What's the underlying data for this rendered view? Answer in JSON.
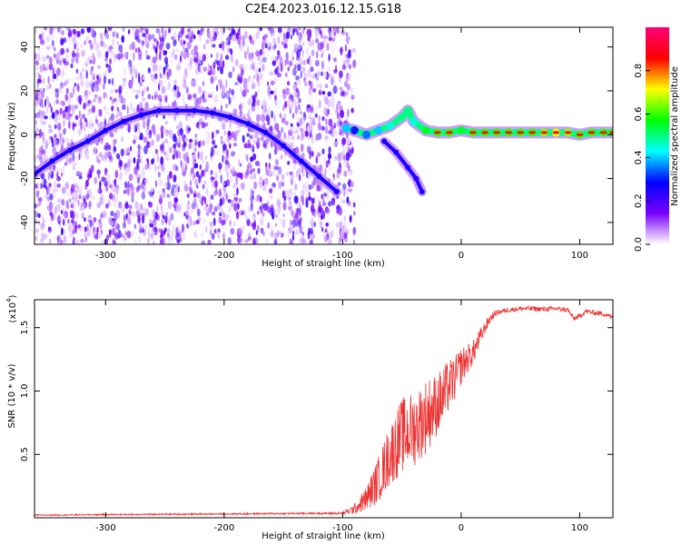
{
  "title": "C2E4.2023.016.12.15.G18",
  "chart_data": [
    {
      "type": "heatmap",
      "xlabel": "Height of straight line (km)",
      "ylabel": "Frequency (Hz)",
      "xlim": [
        -360,
        128
      ],
      "ylim": [
        -50,
        49
      ],
      "xticks": [
        -300,
        -200,
        -100,
        0,
        100
      ],
      "xtick_labels": [
        "-300",
        "-200",
        "-100",
        "0",
        "100"
      ],
      "yticks": [
        -40,
        -20,
        0,
        20,
        40
      ],
      "ytick_labels": [
        "-40",
        "-20",
        "0",
        "20",
        "40"
      ],
      "colorbar": {
        "label": "Normalized spectral amplitude",
        "range": [
          0,
          1
        ],
        "ticks": [
          0.0,
          0.2,
          0.4,
          0.6,
          0.8
        ],
        "tick_labels": [
          "0.0",
          "0.2",
          "0.4",
          "0.6",
          "0.8"
        ],
        "colors": [
          "#ffffff",
          "#7a00ff",
          "#0000ff",
          "#00ffff",
          "#00ff00",
          "#ffff00",
          "#ff0000",
          "#ff0077"
        ]
      },
      "noise_region_x": [
        -360,
        -90
      ],
      "arc_trace": {
        "x": [
          -360,
          -345,
          -330,
          -315,
          -300,
          -285,
          -270,
          -255,
          -240,
          -225,
          -210,
          -195,
          -180,
          -165,
          -150,
          -135,
          -120,
          -105
        ],
        "y": [
          -18,
          -12,
          -7,
          -3,
          2,
          6,
          9,
          11,
          11,
          11,
          10,
          8,
          5,
          1,
          -5,
          -12,
          -19,
          -26
        ]
      },
      "main_trace": {
        "x": [
          -97,
          -90,
          -80,
          -70,
          -60,
          -50,
          -45,
          -40,
          -30,
          -20,
          -10,
          0,
          10,
          20,
          30,
          40,
          50,
          60,
          70,
          80,
          90,
          100,
          110,
          120,
          128
        ],
        "y": [
          3,
          2,
          0,
          2,
          4,
          8,
          11,
          6,
          2,
          1,
          1,
          2,
          1,
          1,
          1,
          1,
          1,
          1,
          1,
          1,
          1,
          0,
          1,
          1,
          1
        ],
        "amplitude": [
          0.4,
          0.3,
          0.35,
          0.4,
          0.45,
          0.5,
          0.5,
          0.45,
          0.55,
          0.6,
          0.6,
          0.55,
          0.6,
          0.6,
          0.6,
          0.6,
          0.6,
          0.6,
          0.65,
          0.7,
          0.65,
          0.6,
          0.6,
          0.6,
          0.6
        ]
      },
      "branch_trace": {
        "x": [
          -65,
          -55,
          -45,
          -38,
          -33
        ],
        "y": [
          -3,
          -8,
          -15,
          -20,
          -26
        ]
      }
    },
    {
      "type": "line",
      "xlabel": "Height of straight line (km)",
      "ylabel": "SNR (10 * v/v)",
      "y_multiplier": "(x10",
      "y_multiplier_exp": "4",
      "y_multiplier_close": ")",
      "xlim": [
        -360,
        128
      ],
      "ylim": [
        0,
        17200
      ],
      "xticks": [
        -300,
        -200,
        -100,
        0,
        100
      ],
      "xtick_labels": [
        "-300",
        "-200",
        "-100",
        "0",
        "100"
      ],
      "yticks": [
        5000,
        10000,
        15000
      ],
      "ytick_labels": [
        "0.5",
        "1.0",
        "1.5"
      ],
      "series": [
        {
          "color": "#ee3333",
          "x": [
            -360,
            -300,
            -200,
            -120,
            -100,
            -90,
            -80,
            -70,
            -60,
            -50,
            -40,
            -30,
            -20,
            -15,
            -10,
            -5,
            0,
            5,
            10,
            15,
            20,
            25,
            30,
            40,
            50,
            60,
            70,
            80,
            90,
            95,
            100,
            105,
            110,
            120,
            128
          ],
          "y": [
            200,
            250,
            300,
            350,
            350,
            700,
            1500,
            3000,
            5000,
            6500,
            7000,
            8000,
            9000,
            9500,
            10500,
            11000,
            12000,
            12500,
            13000,
            14000,
            15000,
            15800,
            16200,
            16400,
            16500,
            16500,
            16450,
            16500,
            16400,
            15700,
            15900,
            16300,
            16200,
            16100,
            15800
          ],
          "noise": [
            50,
            60,
            60,
            80,
            100,
            400,
            1000,
            1800,
            2500,
            3000,
            3000,
            3000,
            2500,
            2500,
            2000,
            1800,
            1500,
            1200,
            1000,
            800,
            500,
            350,
            200,
            200,
            200,
            200,
            200,
            200,
            200,
            200,
            200,
            200,
            200,
            200,
            200
          ]
        }
      ]
    }
  ]
}
